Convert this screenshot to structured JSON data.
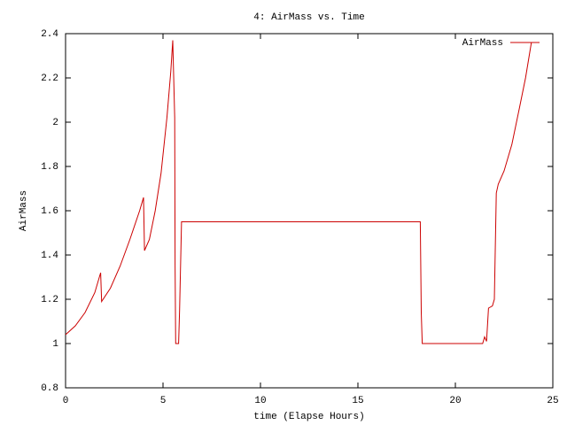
{
  "chart_data": {
    "type": "line",
    "title": "4: AirMass vs. Time",
    "x_label": "time (Elapse Hours)",
    "y_label": "AirMass",
    "xlim": [
      0,
      25
    ],
    "xticks": [
      0,
      5,
      10,
      15,
      20,
      25
    ],
    "ylim": [
      0.8,
      2.4
    ],
    "yticks": [
      0.8,
      1,
      1.2,
      1.4,
      1.6,
      1.8,
      2,
      2.2,
      2.4
    ],
    "legend": "top-right",
    "series": [
      {
        "name": "AirMass",
        "color": "#cc0000",
        "x": [
          0,
          0.5,
          1.0,
          1.5,
          1.8,
          1.85,
          2.3,
          2.8,
          3.3,
          3.8,
          4.0,
          4.05,
          4.3,
          4.6,
          4.9,
          5.2,
          5.4,
          5.5,
          5.6,
          5.62,
          5.65,
          5.8,
          5.85,
          5.95,
          18.2,
          18.25,
          18.3,
          21.4,
          21.5,
          21.6,
          21.7,
          21.9,
          22.0,
          22.1,
          22.2,
          22.5,
          22.9,
          23.3,
          23.6,
          23.9,
          24.3
        ],
        "values": [
          1.04,
          1.08,
          1.14,
          1.23,
          1.32,
          1.19,
          1.25,
          1.35,
          1.47,
          1.6,
          1.66,
          1.42,
          1.47,
          1.6,
          1.77,
          2.02,
          2.23,
          2.37,
          2.02,
          1.35,
          1.0,
          1.0,
          1.15,
          1.55,
          1.55,
          1.14,
          1.0,
          1.0,
          1.03,
          1.01,
          1.16,
          1.17,
          1.2,
          1.68,
          1.72,
          1.78,
          1.9,
          2.07,
          2.2,
          2.36,
          2.36
        ]
      }
    ]
  }
}
